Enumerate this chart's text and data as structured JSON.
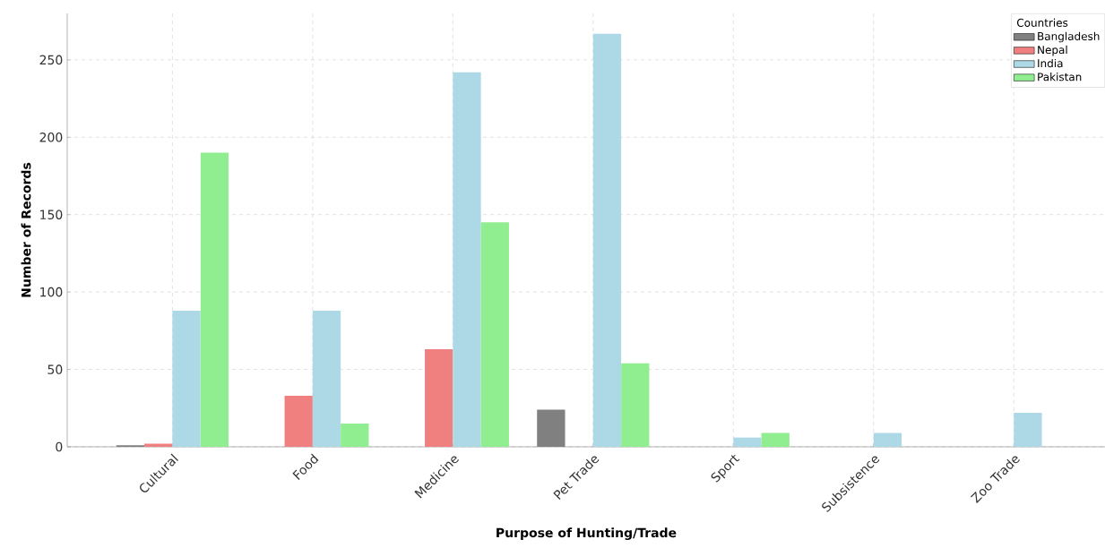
{
  "chart_data": {
    "type": "bar",
    "xlabel": "Purpose of Hunting/Trade",
    "ylabel": "Number of Records",
    "legend_title": "Countries",
    "categories": [
      "Cultural",
      "Food",
      "Medicine",
      "Pet Trade",
      "Sport",
      "Subsistence",
      "Zoo Trade"
    ],
    "series": [
      {
        "name": "Bangladesh",
        "color": "#808080",
        "values": [
          1,
          null,
          null,
          24,
          null,
          null,
          null
        ]
      },
      {
        "name": "Nepal",
        "color": "#f08080",
        "values": [
          2,
          33,
          63,
          null,
          null,
          null,
          null
        ]
      },
      {
        "name": "India",
        "color": "#add8e6",
        "values": [
          88,
          88,
          242,
          267,
          6,
          9,
          22
        ]
      },
      {
        "name": "Pakistan",
        "color": "#90ee90",
        "values": [
          190,
          15,
          145,
          54,
          9,
          null,
          null
        ]
      }
    ],
    "ylim": [
      0,
      280
    ],
    "yticks": [
      0,
      50,
      100,
      150,
      200,
      250
    ],
    "grid": true,
    "legend": "top right"
  }
}
